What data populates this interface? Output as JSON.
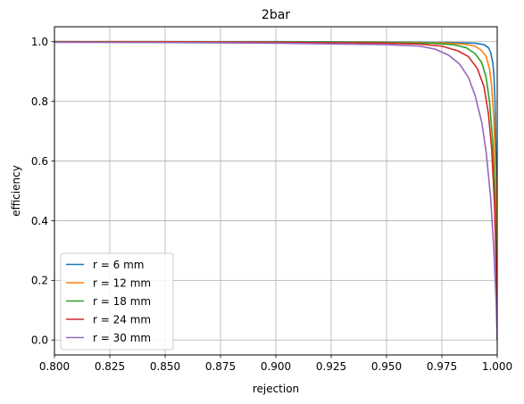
{
  "chart_data": {
    "type": "line",
    "title": "2bar",
    "xlabel": "rejection",
    "ylabel": "efficiency",
    "xlim": [
      0.8,
      1.0
    ],
    "ylim": [
      -0.05,
      1.05
    ],
    "xticks": [
      "0.800",
      "0.825",
      "0.850",
      "0.875",
      "0.900",
      "0.925",
      "0.950",
      "0.975",
      "1.000"
    ],
    "yticks": [
      "0.0",
      "0.2",
      "0.4",
      "0.6",
      "0.8",
      "1.0"
    ],
    "xtick_values": [
      0.8,
      0.825,
      0.85,
      0.875,
      0.9,
      0.925,
      0.95,
      0.975,
      1.0
    ],
    "ytick_values": [
      0.0,
      0.2,
      0.4,
      0.6,
      0.8,
      1.0
    ],
    "grid": true,
    "legend_position": "lower-left",
    "series": [
      {
        "name": "r = 6 mm",
        "color": "#1f77b4",
        "x": [
          0.8,
          0.85,
          0.9,
          0.95,
          0.98,
          0.99,
          0.994,
          0.996,
          0.997,
          0.998,
          0.9985,
          0.999,
          0.9995,
          0.9998,
          1.0
        ],
        "y": [
          1.0,
          1.0,
          1.0,
          0.999,
          0.997,
          0.995,
          0.99,
          0.98,
          0.965,
          0.93,
          0.89,
          0.8,
          0.6,
          0.35,
          0.0
        ]
      },
      {
        "name": "r = 12 mm",
        "color": "#ff7f0e",
        "x": [
          0.8,
          0.85,
          0.9,
          0.95,
          0.975,
          0.985,
          0.99,
          0.993,
          0.995,
          0.9965,
          0.9975,
          0.9985,
          0.9993,
          0.9998,
          1.0
        ],
        "y": [
          1.0,
          1.0,
          0.999,
          0.998,
          0.996,
          0.992,
          0.985,
          0.97,
          0.95,
          0.91,
          0.85,
          0.74,
          0.55,
          0.3,
          0.0
        ]
      },
      {
        "name": "r = 18 mm",
        "color": "#2ca02c",
        "x": [
          0.8,
          0.85,
          0.9,
          0.95,
          0.97,
          0.98,
          0.986,
          0.99,
          0.993,
          0.995,
          0.9965,
          0.998,
          0.999,
          0.9997,
          1.0
        ],
        "y": [
          1.0,
          0.999,
          0.999,
          0.997,
          0.995,
          0.99,
          0.98,
          0.96,
          0.93,
          0.88,
          0.8,
          0.66,
          0.48,
          0.25,
          0.0
        ]
      },
      {
        "name": "r = 24 mm",
        "color": "#d62728",
        "x": [
          0.8,
          0.85,
          0.9,
          0.95,
          0.965,
          0.975,
          0.982,
          0.987,
          0.991,
          0.994,
          0.996,
          0.9975,
          0.9988,
          0.9996,
          1.0
        ],
        "y": [
          0.999,
          0.999,
          0.998,
          0.995,
          0.992,
          0.985,
          0.97,
          0.95,
          0.91,
          0.85,
          0.76,
          0.64,
          0.45,
          0.22,
          0.0
        ]
      },
      {
        "name": "r = 30 mm",
        "color": "#9467bd",
        "x": [
          0.8,
          0.85,
          0.9,
          0.95,
          0.965,
          0.972,
          0.978,
          0.983,
          0.987,
          0.99,
          0.993,
          0.995,
          0.997,
          0.9985,
          0.9995,
          1.0
        ],
        "y": [
          0.998,
          0.997,
          0.995,
          0.99,
          0.985,
          0.975,
          0.955,
          0.925,
          0.88,
          0.82,
          0.73,
          0.63,
          0.48,
          0.3,
          0.13,
          0.0
        ]
      }
    ]
  }
}
